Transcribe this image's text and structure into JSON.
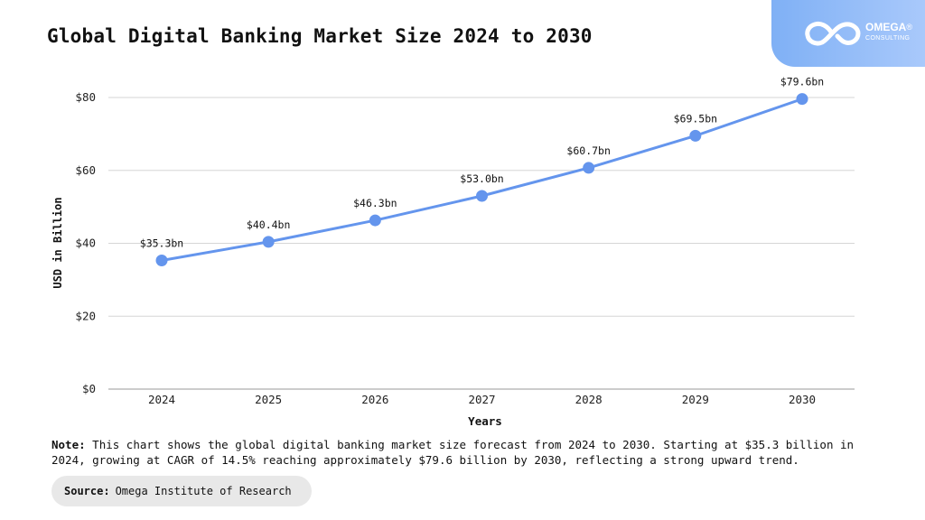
{
  "title": "Global Digital Banking Market Size 2024 to 2030",
  "logo": {
    "name": "OMEGA",
    "registered": "®",
    "subtitle": "CONSULTING"
  },
  "chart_data": {
    "type": "line",
    "x": [
      "2024",
      "2025",
      "2026",
      "2027",
      "2028",
      "2029",
      "2030"
    ],
    "series": [
      {
        "values": [
          35.3,
          40.4,
          46.3,
          53.0,
          60.7,
          69.5,
          79.6
        ]
      }
    ],
    "data_labels": [
      "$35.3bn",
      "$40.4bn",
      "$46.3bn",
      "$53.0bn",
      "$60.7bn",
      "$69.5bn",
      "$79.6bn"
    ],
    "y_ticks": [
      0,
      20,
      40,
      60,
      80
    ],
    "y_tick_labels": [
      "$0",
      "$20",
      "$40",
      "$60",
      "$80"
    ],
    "ylim": [
      0,
      80
    ],
    "xlabel": "Years",
    "ylabel": "USD in Billion",
    "grid": true,
    "line_color": "#6495ed"
  },
  "note": {
    "label": "Note:",
    "text": "This chart shows the global digital banking market size forecast from 2024 to 2030. Starting at $35.3 billion in 2024, growing at CAGR of 14.5% reaching approximately $79.6 billion by 2030, reflecting a strong upward trend."
  },
  "source": {
    "label": "Source:",
    "text": "Omega Institute of Research"
  }
}
